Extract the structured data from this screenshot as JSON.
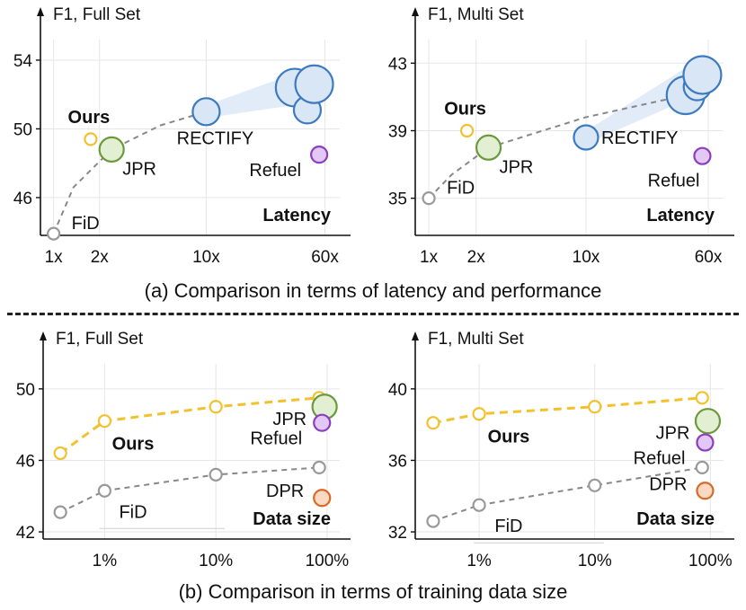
{
  "captions": {
    "a": "(a) Comparison in terms of latency and performance",
    "b": "(b) Comparison in terms of training data size"
  },
  "colors": {
    "ours": "#F2C12E",
    "jpr": "#6A9A3C",
    "jpr_fill": "#E3EFD3",
    "refuel": "#8A3FC0",
    "refuel_fill": "#E3C7F5",
    "rectify": "#3D7ABF",
    "rectify_fill": "#D8E6F5",
    "fid": "#999999",
    "dpr": "#D86A28",
    "dpr_fill": "#FBD9C2",
    "dash": "#888888"
  },
  "chart_data": [
    {
      "id": "a-full",
      "type": "scatter",
      "title": "F1, Full Set",
      "corner_label": "Latency",
      "xscale": "log",
      "xlim": [
        0.82,
        75
      ],
      "xticks": [
        {
          "v": 1,
          "label": "1x"
        },
        {
          "v": 2,
          "label": "2x"
        },
        {
          "v": 10,
          "label": "10x"
        },
        {
          "v": 60,
          "label": "60x"
        }
      ],
      "ylim": [
        43.8,
        55.2
      ],
      "yticks": [
        46,
        50,
        54
      ],
      "series": [
        {
          "name": "FiD",
          "label": "FiD",
          "points": [
            {
              "x": 1.0,
              "y": 43.9,
              "size": "s"
            }
          ],
          "color": "fid",
          "label_pos": "below-right"
        },
        {
          "name": "Ours",
          "label": "Ours",
          "points": [
            {
              "x": 1.75,
              "y": 49.4,
              "size": "s"
            }
          ],
          "color": "ours",
          "bold": true,
          "label_pos": "above"
        },
        {
          "name": "JPR",
          "label": "JPR",
          "points": [
            {
              "x": 2.4,
              "y": 48.8,
              "size": "m"
            }
          ],
          "color": "jpr",
          "label_pos": "below-right"
        },
        {
          "name": "Refuel",
          "label": "Refuel",
          "points": [
            {
              "x": 55,
              "y": 48.5,
              "size": "s2"
            }
          ],
          "color": "refuel",
          "label_pos": "left"
        },
        {
          "name": "RECTIFY",
          "label": "RECTIFY",
          "points": [
            {
              "x": 10,
              "y": 51.0,
              "size": "l"
            },
            {
              "x": 38,
              "y": 52.4,
              "size": "xl"
            },
            {
              "x": 46,
              "y": 51.1,
              "size": "l"
            },
            {
              "x": 51,
              "y": 52.6,
              "size": "xl"
            }
          ],
          "color": "rectify",
          "label_pos": "below"
        }
      ],
      "trend": [
        {
          "x": 1.0,
          "y": 43.9
        },
        {
          "x": 1.35,
          "y": 46.6
        },
        {
          "x": 2.4,
          "y": 48.8
        },
        {
          "x": 5,
          "y": 50.2
        },
        {
          "x": 10,
          "y": 51.0
        }
      ]
    },
    {
      "id": "a-multi",
      "type": "scatter",
      "title": "F1, Multi Set",
      "corner_label": "Latency",
      "xscale": "log",
      "xlim": [
        0.82,
        75
      ],
      "xticks": [
        {
          "v": 1,
          "label": "1x"
        },
        {
          "v": 2,
          "label": "2x"
        },
        {
          "v": 10,
          "label": "10x"
        },
        {
          "v": 60,
          "label": "60x"
        }
      ],
      "ylim": [
        32.8,
        44.4
      ],
      "yticks": [
        35,
        39,
        43
      ],
      "series": [
        {
          "name": "FiD",
          "label": "FiD",
          "points": [
            {
              "x": 1.0,
              "y": 35.0,
              "size": "s"
            }
          ],
          "color": "fid",
          "label_pos": "below-right"
        },
        {
          "name": "Ours",
          "label": "Ours",
          "points": [
            {
              "x": 1.75,
              "y": 39.0,
              "size": "s"
            }
          ],
          "color": "ours",
          "bold": true,
          "label_pos": "above"
        },
        {
          "name": "JPR",
          "label": "JPR",
          "points": [
            {
              "x": 2.4,
              "y": 38.0,
              "size": "m"
            }
          ],
          "color": "jpr",
          "label_pos": "below-right"
        },
        {
          "name": "Refuel",
          "label": "Refuel",
          "points": [
            {
              "x": 55,
              "y": 37.5,
              "size": "s2"
            }
          ],
          "color": "refuel",
          "label_pos": "below-left"
        },
        {
          "name": "RECTIFY",
          "label": "RECTIFY",
          "points": [
            {
              "x": 10,
              "y": 38.6,
              "size": "m"
            },
            {
              "x": 43,
              "y": 41.1,
              "size": "xl"
            },
            {
              "x": 51,
              "y": 41.6,
              "size": "l"
            },
            {
              "x": 55,
              "y": 42.3,
              "size": "xl"
            }
          ],
          "color": "rectify",
          "label_pos": "right"
        }
      ],
      "trend": [
        {
          "x": 1.0,
          "y": 35.0
        },
        {
          "x": 1.4,
          "y": 36.4
        },
        {
          "x": 2.4,
          "y": 38.0
        },
        {
          "x": 10,
          "y": 39.8
        },
        {
          "x": 43,
          "y": 41.1
        }
      ]
    },
    {
      "id": "b-full",
      "type": "line",
      "title": "F1, Full Set",
      "corner_label": "Data size",
      "xscale": "log",
      "xlim": [
        0.28,
        130
      ],
      "xticks": [
        {
          "v": 1,
          "label": "1%"
        },
        {
          "v": 10,
          "label": "10%"
        },
        {
          "v": 100,
          "label": "100%"
        }
      ],
      "ylim": [
        41.6,
        51.4
      ],
      "yticks": [
        42,
        46,
        50
      ],
      "series": [
        {
          "name": "Ours",
          "label": "Ours",
          "style": "line",
          "color": "ours",
          "bold": true,
          "points": [
            {
              "x": 0.4,
              "y": 46.4
            },
            {
              "x": 1,
              "y": 48.2
            },
            {
              "x": 10,
              "y": 49.0
            },
            {
              "x": 85,
              "y": 49.5
            }
          ]
        },
        {
          "name": "FiD",
          "label": "FiD",
          "style": "line",
          "color": "fid",
          "points": [
            {
              "x": 0.4,
              "y": 43.1
            },
            {
              "x": 1,
              "y": 44.3
            },
            {
              "x": 10,
              "y": 45.2
            },
            {
              "x": 85,
              "y": 45.6
            }
          ]
        },
        {
          "name": "JPR",
          "label": "JPR",
          "color": "jpr",
          "points": [
            {
              "x": 95,
              "y": 49.0,
              "size": "m"
            }
          ],
          "label_pos": "left"
        },
        {
          "name": "Refuel",
          "label": "Refuel",
          "color": "refuel",
          "points": [
            {
              "x": 90,
              "y": 48.1,
              "size": "s2"
            }
          ],
          "label_pos": "left-below"
        },
        {
          "name": "DPR",
          "label": "DPR",
          "color": "dpr",
          "points": [
            {
              "x": 90,
              "y": 43.9,
              "size": "s2"
            }
          ],
          "label_pos": "left-up"
        }
      ]
    },
    {
      "id": "b-multi",
      "type": "line",
      "title": "F1, Multi Set",
      "corner_label": "Data size",
      "xscale": "log",
      "xlim": [
        0.28,
        130
      ],
      "xticks": [
        {
          "v": 1,
          "label": "1%"
        },
        {
          "v": 10,
          "label": "10%"
        },
        {
          "v": 100,
          "label": "100%"
        }
      ],
      "ylim": [
        31.6,
        41.4
      ],
      "yticks": [
        32,
        36,
        40
      ],
      "series": [
        {
          "name": "Ours",
          "label": "Ours",
          "style": "line",
          "color": "ours",
          "bold": true,
          "points": [
            {
              "x": 0.4,
              "y": 38.1
            },
            {
              "x": 1,
              "y": 38.6
            },
            {
              "x": 10,
              "y": 39.0
            },
            {
              "x": 85,
              "y": 39.5
            }
          ]
        },
        {
          "name": "FiD",
          "label": "FiD",
          "style": "line",
          "color": "fid",
          "points": [
            {
              "x": 0.4,
              "y": 32.6
            },
            {
              "x": 1,
              "y": 33.5
            },
            {
              "x": 10,
              "y": 34.6
            },
            {
              "x": 85,
              "y": 35.6
            }
          ]
        },
        {
          "name": "JPR",
          "label": "JPR",
          "color": "jpr",
          "points": [
            {
              "x": 95,
              "y": 38.2,
              "size": "m"
            }
          ],
          "label_pos": "left"
        },
        {
          "name": "Refuel",
          "label": "Refuel",
          "color": "refuel",
          "points": [
            {
              "x": 90,
              "y": 37.0,
              "size": "s2"
            }
          ],
          "label_pos": "left-below"
        },
        {
          "name": "DPR",
          "label": "DPR",
          "color": "dpr",
          "points": [
            {
              "x": 90,
              "y": 34.3,
              "size": "s2"
            }
          ],
          "label_pos": "left-up"
        }
      ]
    }
  ]
}
